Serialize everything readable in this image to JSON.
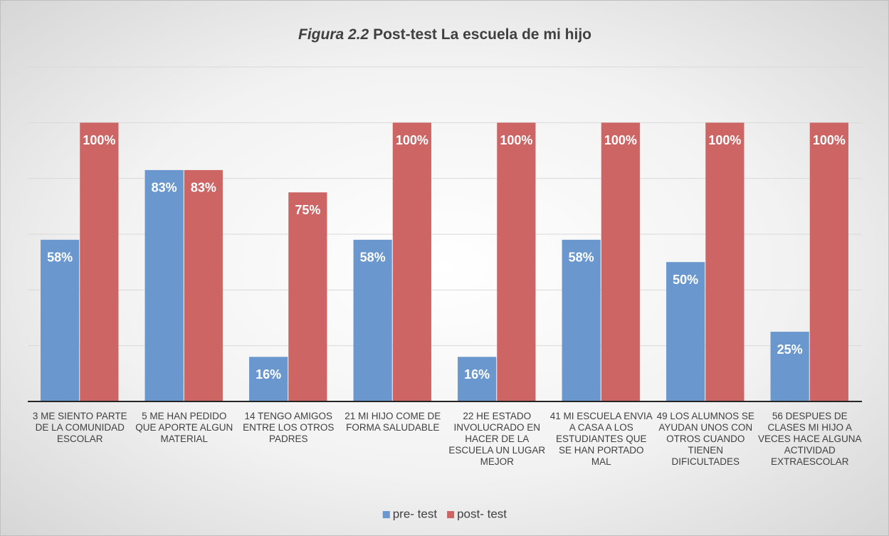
{
  "chart_data": {
    "type": "bar",
    "figure_label": "Figura 2.2",
    "title": "Post-test La escuela de mi hijo",
    "categories": [
      "3 ME SIENTO PARTE DE LA COMUNIDAD ESCOLAR",
      "5 ME HAN PEDIDO QUE APORTE ALGUN MATERIAL",
      "14 TENGO AMIGOS ENTRE LOS OTROS PADRES",
      "21 MI HIJO COME DE FORMA SALUDABLE",
      "22 HE ESTADO INVOLUCRADO EN HACER DE LA ESCUELA UN LUGAR MEJOR",
      "41 MI ESCUELA ENVIA A CASA A LOS ESTUDIANTES QUE SE HAN PORTADO MAL",
      "49 LOS ALUMNOS SE AYUDAN UNOS CON OTROS CUANDO TIENEN DIFICULTADES",
      "56 DESPUES DE CLASES MI HIJO A VECES HACE ALGUNA ACTIVIDAD EXTRAESCOLAR"
    ],
    "series": [
      {
        "name": "pre- test",
        "color": "#6a97cd",
        "values": [
          58,
          83,
          16,
          58,
          16,
          58,
          50,
          25
        ],
        "value_labels": [
          "58%",
          "83%",
          "16%",
          "58%",
          "16%",
          "58%",
          "50%",
          "25%"
        ]
      },
      {
        "name": "post- test",
        "color": "#cd6565",
        "values": [
          100,
          83,
          75,
          100,
          100,
          100,
          100,
          100
        ],
        "value_labels": [
          "100%",
          "83%",
          "75%",
          "100%",
          "100%",
          "100%",
          "100%",
          "100%"
        ]
      }
    ],
    "ylim": [
      0,
      120
    ],
    "yticks": [
      0,
      20,
      40,
      60,
      80,
      100,
      120
    ],
    "grid": true,
    "legend": "bottom"
  }
}
